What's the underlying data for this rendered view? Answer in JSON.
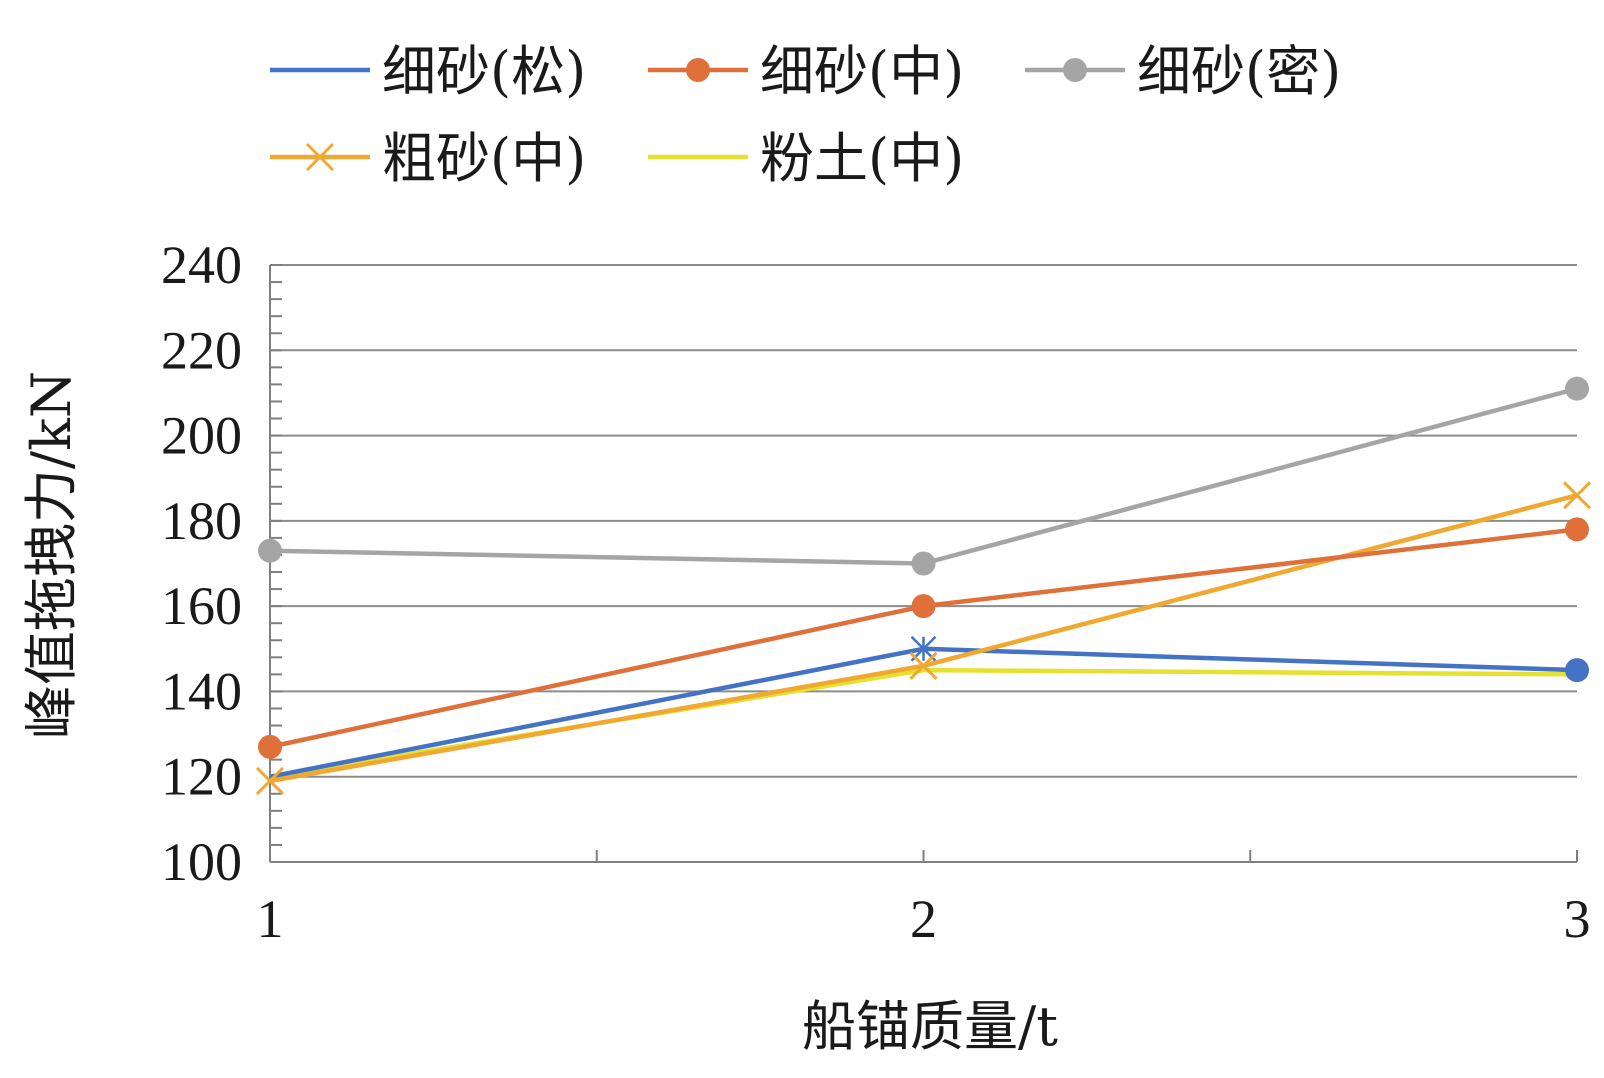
{
  "chart_data": {
    "type": "line",
    "xlabel": "船锚质量/t",
    "ylabel": "峰值拖拽力/kN",
    "x": [
      1,
      2,
      3
    ],
    "xlim": [
      1,
      3
    ],
    "ylim": [
      100,
      240
    ],
    "y_ticks": [
      100,
      120,
      140,
      160,
      180,
      200,
      220,
      240
    ],
    "x_ticks": [
      1,
      2,
      3
    ],
    "grid": true,
    "legend_position": "top",
    "series": [
      {
        "name": "细砂(松)",
        "values": [
          120,
          150,
          145
        ],
        "color": "#4472c4",
        "marker": "circle-end"
      },
      {
        "name": "细砂(中)",
        "values": [
          127,
          160,
          178
        ],
        "color": "#e0703a",
        "marker": "circle"
      },
      {
        "name": "细砂(密)",
        "values": [
          173,
          170,
          211
        ],
        "color": "#a5a5a5",
        "marker": "circle"
      },
      {
        "name": "粗砂(中)",
        "values": [
          119,
          146,
          186
        ],
        "color": "#f0a830",
        "marker": "x"
      },
      {
        "name": "粉土(中)",
        "values": [
          120,
          145,
          144
        ],
        "color": "#e6e030",
        "marker": "none"
      }
    ]
  }
}
